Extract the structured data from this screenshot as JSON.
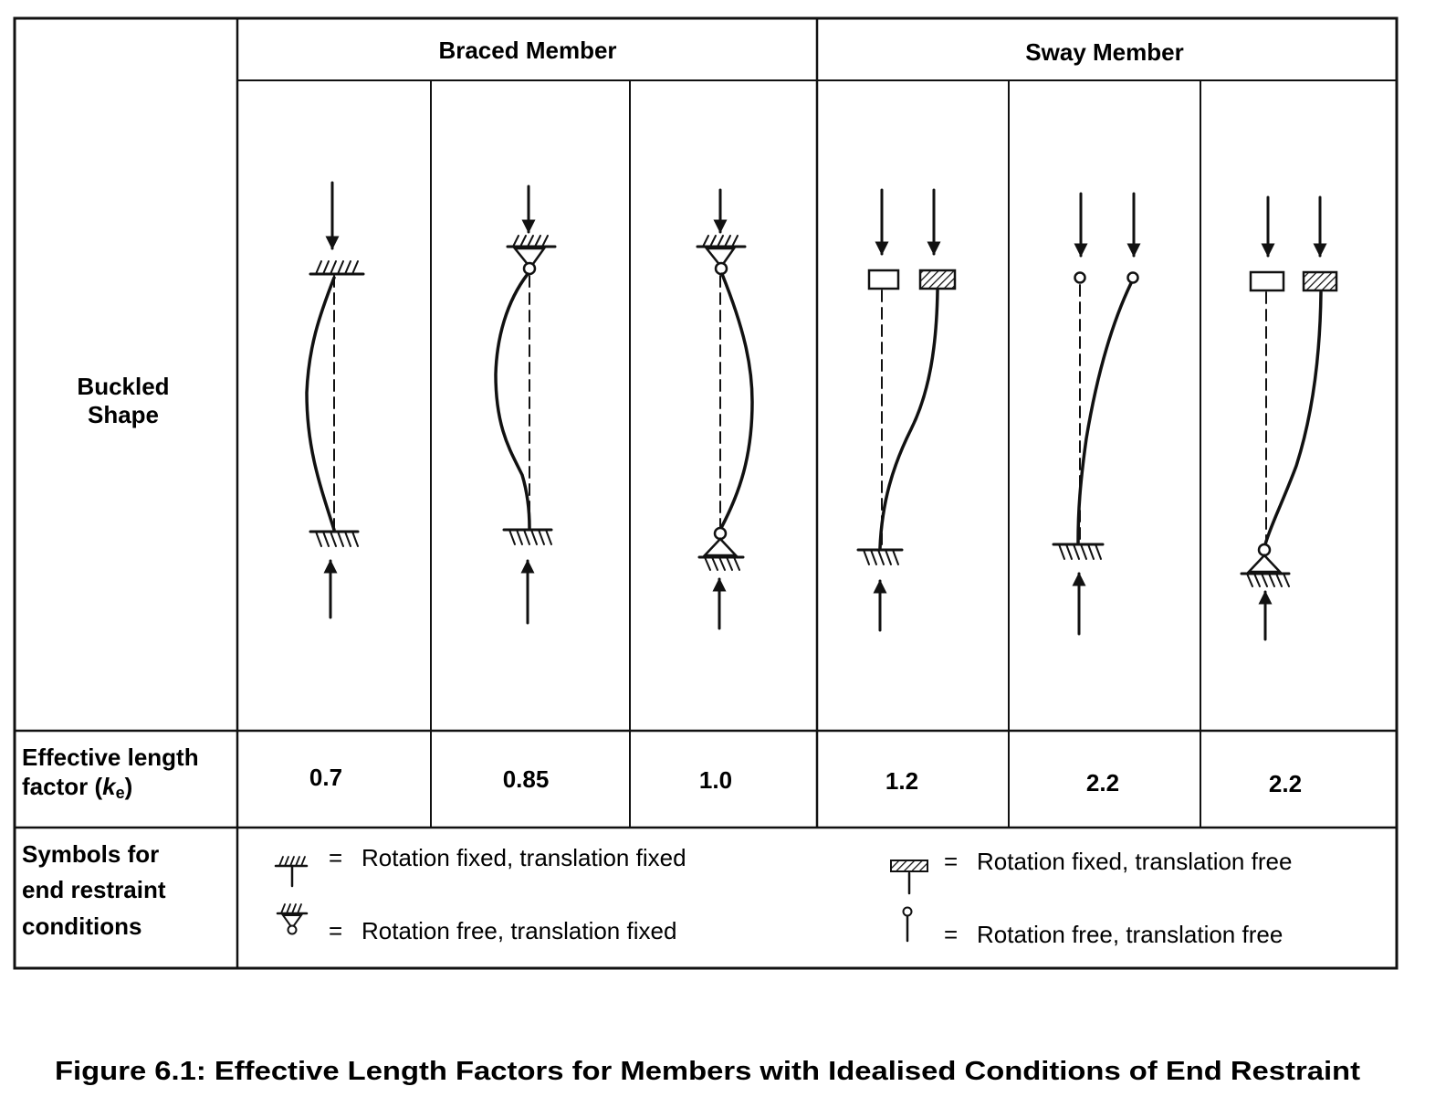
{
  "headers": {
    "braced": "Braced Member",
    "sway": "Sway Member"
  },
  "row_labels": {
    "buckled_line1": "Buckled",
    "buckled_line2": "Shape",
    "factor_line1": "Effective length",
    "factor_line2_prefix": "factor (",
    "factor_line2_k": "k",
    "factor_line2_sub": "e",
    "factor_line2_suffix": ")",
    "symbols_line1": "Symbols for",
    "symbols_line2": "end restraint",
    "symbols_line3": "conditions"
  },
  "factors": [
    "0.7",
    "0.85",
    "1.0",
    "1.2",
    "2.2",
    "2.2"
  ],
  "legend": {
    "eq": "=",
    "fixed_fixed": "Rotation fixed, translation fixed",
    "free_fixed": "Rotation free, translation fixed",
    "fixed_free": "Rotation fixed, translation free",
    "free_free": "Rotation free, translation free"
  },
  "caption": "Figure 6.1: Effective Length Factors for Members with Idealised Conditions of End Restraint"
}
